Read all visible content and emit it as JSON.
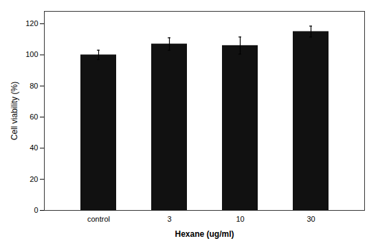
{
  "chart_data": {
    "type": "bar",
    "categories": [
      "control",
      "3",
      "10",
      "30"
    ],
    "values": [
      100.0,
      107.0,
      106.0,
      115.0
    ],
    "errors": [
      3.0,
      4.0,
      5.5,
      3.5
    ],
    "color": "#111111",
    "xlabel": "Hexane (ug/ml)",
    "ylabel": "Cell viability (%)",
    "ylim": [
      0,
      128
    ],
    "yticks": [
      0,
      20,
      40,
      60,
      80,
      100,
      120
    ],
    "grid": false
  }
}
